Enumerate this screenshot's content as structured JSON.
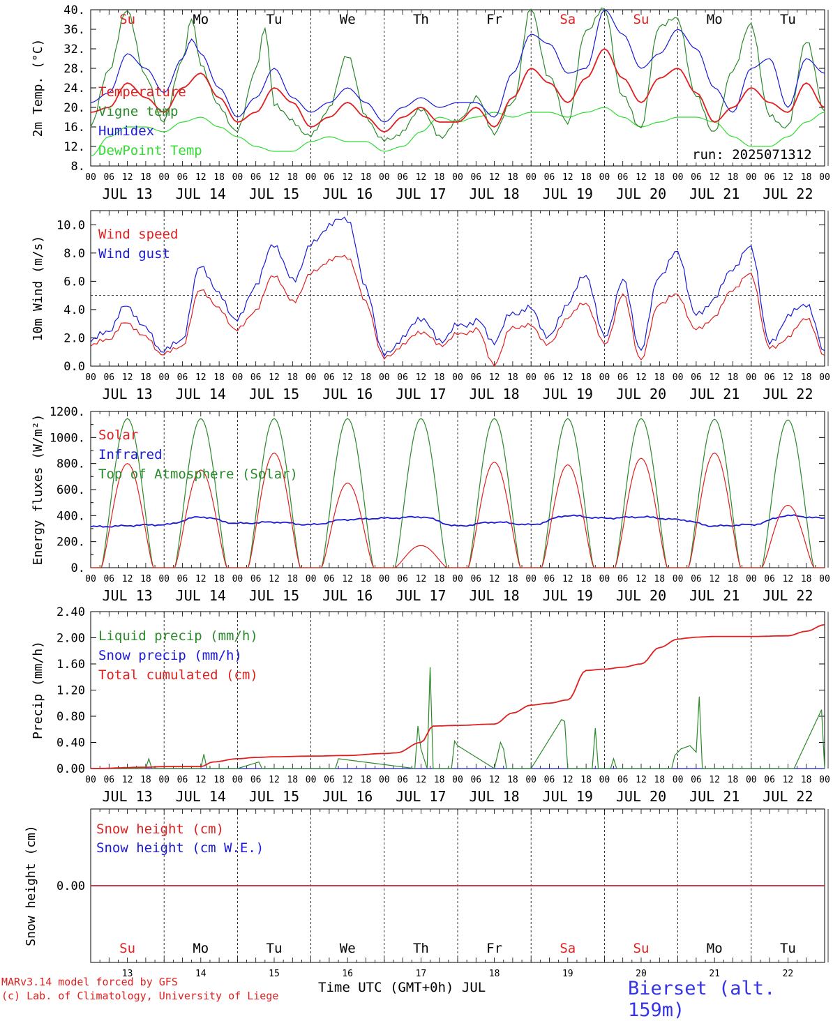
{
  "days": [
    "Su",
    "Mo",
    "Tu",
    "We",
    "Th",
    "Fr",
    "Sa",
    "Su",
    "Mo",
    "Tu"
  ],
  "day_colors": [
    "#e02020",
    "#000000",
    "#000000",
    "#000000",
    "#000000",
    "#000000",
    "#e02020",
    "#e02020",
    "#000000",
    "#000000"
  ],
  "date_labels": [
    "JUL 13",
    "JUL 14",
    "JUL 15",
    "JUL 16",
    "JUL 17",
    "JUL 18",
    "JUL 19",
    "JUL 20",
    "JUL 21",
    "JUL 22"
  ],
  "hour_ticks": [
    "00",
    "06",
    "12",
    "18"
  ],
  "bottom_day_numbers": [
    "13",
    "14",
    "15",
    "16",
    "17",
    "18",
    "19",
    "20",
    "21",
    "22"
  ],
  "run_label": "run: 2025071312",
  "xlabel": "Time UTC (GMT+0h) JUL",
  "credit_line1": "MARv3.14 model forced by GFS",
  "credit_line2": "(c) Lab. of Climatology, University of Liege",
  "station": "Bierset (alt. 159m)",
  "colors": {
    "red": "#e02020",
    "green": "#2a8a2a",
    "lightgreen": "#33dd33",
    "blue": "#1a1ad6"
  },
  "chart_data": [
    {
      "type": "line",
      "ylabel": "2m Temp. (°C)",
      "ylim": [
        8,
        40
      ],
      "yticks": [
        "8.",
        "12.",
        "16.",
        "20.",
        "24.",
        "28.",
        "32.",
        "36.",
        "40."
      ],
      "x_unit": "hours since JUL 13 00 UTC",
      "series": [
        {
          "name": "Temperature",
          "x": [
            0,
            6,
            12,
            18,
            24,
            30,
            36,
            42,
            48,
            54,
            60,
            66,
            72,
            78,
            84,
            90,
            96,
            102,
            108,
            114,
            120,
            126,
            132,
            138,
            144,
            150,
            156,
            162,
            168,
            174,
            180,
            186,
            192,
            198,
            204,
            210,
            216,
            222,
            228,
            234,
            240
          ],
          "values": [
            19,
            20,
            25,
            22,
            19,
            24,
            27,
            22,
            17,
            19,
            24,
            21,
            16,
            18,
            21,
            18,
            15,
            18,
            20,
            17,
            17,
            20,
            16,
            22,
            28,
            25,
            21,
            26,
            32,
            26,
            21,
            26,
            28,
            23,
            17,
            20,
            24,
            21,
            19,
            25,
            20
          ]
        },
        {
          "name": "Vigne temp",
          "x": [
            0,
            6,
            12,
            18,
            24,
            30,
            33,
            36,
            42,
            48,
            54,
            57,
            60,
            66,
            72,
            78,
            84,
            90,
            96,
            102,
            108,
            114,
            120,
            126,
            132,
            138,
            144,
            150,
            156,
            162,
            168,
            174,
            180,
            186,
            192,
            198,
            204,
            210,
            216,
            222,
            228,
            234,
            240
          ],
          "values": [
            16,
            28,
            40,
            26,
            17,
            30,
            38,
            29,
            20,
            15,
            28,
            36,
            21,
            17,
            14,
            20,
            31,
            18,
            13,
            15,
            20,
            14,
            17,
            22,
            15,
            21,
            40,
            26,
            17,
            36,
            40,
            22,
            16,
            37,
            38,
            22,
            15,
            28,
            37,
            18,
            16,
            34,
            19
          ]
        },
        {
          "name": "Humidex",
          "x": [
            0,
            6,
            12,
            18,
            24,
            30,
            33,
            36,
            42,
            48,
            54,
            60,
            66,
            72,
            78,
            84,
            90,
            96,
            102,
            108,
            114,
            120,
            126,
            132,
            138,
            144,
            150,
            156,
            162,
            168,
            174,
            180,
            186,
            192,
            198,
            204,
            210,
            216,
            222,
            228,
            234,
            240
          ],
          "values": [
            21,
            23,
            31,
            28,
            23,
            30,
            34,
            31,
            24,
            18,
            22,
            28,
            22,
            19,
            21,
            24,
            21,
            17,
            20,
            22,
            20,
            21,
            21,
            18,
            27,
            35,
            33,
            27,
            28,
            40,
            35,
            28,
            31,
            36,
            32,
            24,
            19,
            28,
            30,
            20,
            30,
            27
          ]
        },
        {
          "name": "DewPoint Temp",
          "x": [
            0,
            6,
            12,
            18,
            24,
            30,
            36,
            42,
            48,
            54,
            60,
            66,
            72,
            78,
            84,
            90,
            96,
            102,
            108,
            114,
            120,
            126,
            132,
            138,
            144,
            150,
            156,
            162,
            168,
            174,
            180,
            186,
            192,
            198,
            204,
            210,
            216,
            222,
            228,
            234,
            240
          ],
          "values": [
            10,
            14,
            16,
            16,
            15,
            17,
            18,
            16,
            14,
            12,
            11,
            11,
            13,
            14,
            13,
            13,
            11,
            12,
            15,
            18,
            17,
            18,
            19,
            18,
            19,
            19,
            18,
            19,
            20,
            18,
            16,
            17,
            18,
            18,
            17,
            14,
            12,
            12,
            14,
            17,
            19
          ]
        }
      ]
    },
    {
      "type": "line",
      "ylabel": "10m Wind (m/s)",
      "ylim": [
        0,
        11
      ],
      "yticks": [
        "0.0",
        "2.0",
        "4.0",
        "6.0",
        "8.0",
        "10.0"
      ],
      "reference_line": 5.0,
      "x_unit": "hours since JUL 13 00 UTC",
      "series": [
        {
          "name": "Wind speed",
          "x": [
            0,
            6,
            12,
            18,
            24,
            30,
            36,
            42,
            48,
            54,
            60,
            66,
            72,
            78,
            84,
            90,
            96,
            102,
            108,
            114,
            120,
            126,
            132,
            138,
            144,
            150,
            156,
            162,
            168,
            174,
            180,
            186,
            192,
            198,
            204,
            210,
            216,
            222,
            228,
            234,
            240
          ],
          "values": [
            1.4,
            2.0,
            3.1,
            2.0,
            0.8,
            1.5,
            5.5,
            4.0,
            2.5,
            4.0,
            6.5,
            4.5,
            6.5,
            7.5,
            7.8,
            4.5,
            0.5,
            1.5,
            2.5,
            1.5,
            2.2,
            2.6,
            0.2,
            2.8,
            2.8,
            1.5,
            3.5,
            4.5,
            1.5,
            5.0,
            0.5,
            4.5,
            5.0,
            2.5,
            3.5,
            5.5,
            6.5,
            1.2,
            2.0,
            3.5,
            0.7
          ]
        },
        {
          "name": "Wind gust",
          "x": [
            0,
            6,
            12,
            18,
            24,
            30,
            36,
            42,
            48,
            54,
            60,
            66,
            72,
            78,
            84,
            90,
            96,
            102,
            108,
            114,
            120,
            126,
            132,
            138,
            144,
            150,
            156,
            162,
            168,
            174,
            180,
            186,
            192,
            198,
            204,
            210,
            216,
            222,
            228,
            234,
            240
          ],
          "values": [
            1.7,
            2.6,
            4.3,
            2.6,
            1.0,
            2.0,
            7.2,
            5.0,
            3.2,
            5.8,
            8.7,
            6.0,
            8.5,
            10.0,
            10.5,
            5.5,
            0.7,
            2.0,
            3.5,
            1.8,
            2.8,
            3.2,
            1.8,
            3.8,
            4.0,
            2.0,
            4.5,
            6.5,
            2.0,
            6.0,
            1.2,
            6.5,
            8.0,
            3.5,
            4.8,
            7.0,
            8.4,
            1.5,
            3.5,
            4.5,
            1.0
          ]
        }
      ]
    },
    {
      "type": "line",
      "ylabel": "Energy fluxes (W/m²)",
      "ylim": [
        0,
        1200
      ],
      "yticks": [
        "0.",
        "200.",
        "400.",
        "600.",
        "800.",
        "1000.",
        "1200."
      ],
      "x_unit": "hours since JUL 13 00 UTC",
      "series": [
        {
          "name": "Solar",
          "daily_peak": [
            800,
            750,
            880,
            650,
            170,
            810,
            790,
            840,
            880,
            480
          ]
        },
        {
          "name": "Infrared",
          "x": [
            0,
            24,
            36,
            48,
            60,
            72,
            84,
            96,
            108,
            120,
            132,
            144,
            156,
            168,
            180,
            192,
            204,
            216,
            228,
            240
          ],
          "values": [
            315,
            330,
            390,
            340,
            350,
            330,
            370,
            380,
            390,
            320,
            350,
            330,
            400,
            380,
            390,
            370,
            320,
            330,
            400,
            380
          ]
        },
        {
          "name": "Top of Atmosphere (Solar)",
          "daily_peak": [
            1145,
            1145,
            1145,
            1145,
            1145,
            1145,
            1145,
            1145,
            1140,
            1135
          ]
        }
      ]
    },
    {
      "type": "line",
      "ylabel": "Precip (mm/h)",
      "ylim": [
        0,
        2.4
      ],
      "yticks": [
        "0.00",
        "0.40",
        "0.80",
        "1.20",
        "1.60",
        "2.00",
        "2.40"
      ],
      "x_unit": "hours since JUL 13 00 UTC",
      "series": [
        {
          "name": "Liquid precip (mm/h)",
          "x": [
            0,
            18,
            19,
            20,
            36,
            37,
            38,
            48,
            55,
            56,
            80,
            81,
            106,
            107,
            108,
            110,
            111,
            112,
            118,
            119,
            120,
            132,
            134,
            135,
            136,
            144,
            154,
            155,
            156,
            164,
            165,
            166,
            170,
            171,
            172,
            190,
            191,
            193,
            196,
            198,
            199,
            200,
            204,
            212,
            220,
            230,
            232,
            239,
            240
          ],
          "values": [
            0,
            0,
            0.15,
            0,
            0,
            0.22,
            0,
            0,
            0.1,
            0,
            0,
            0.15,
            0,
            0.65,
            0.3,
            0,
            1.55,
            0,
            0,
            0.42,
            0.35,
            0,
            0.4,
            0.3,
            0,
            0,
            0.75,
            0.72,
            0,
            0,
            0.62,
            0,
            0,
            0.15,
            0,
            0,
            0.2,
            0.3,
            0.35,
            0.25,
            1.1,
            0,
            0,
            0,
            0,
            0,
            0.2,
            0.9,
            0
          ]
        },
        {
          "name": "Snow precip (mm/h)",
          "x": [
            0,
            240
          ],
          "values": [
            0,
            0
          ]
        },
        {
          "name": "Total cumulated (cm)",
          "x": [
            0,
            18,
            24,
            36,
            40,
            48,
            54,
            60,
            72,
            84,
            96,
            100,
            108,
            112,
            120,
            132,
            138,
            144,
            150,
            156,
            162,
            168,
            174,
            180,
            186,
            192,
            196,
            198,
            204,
            216,
            228,
            234,
            240
          ],
          "values": [
            0,
            0.02,
            0.03,
            0.03,
            0.1,
            0.15,
            0.17,
            0.18,
            0.19,
            0.2,
            0.23,
            0.24,
            0.4,
            0.65,
            0.66,
            0.68,
            0.85,
            0.97,
            1.0,
            1.05,
            1.5,
            1.52,
            1.55,
            1.6,
            1.85,
            1.98,
            2.0,
            2.01,
            2.02,
            2.02,
            2.03,
            2.1,
            2.2
          ]
        }
      ]
    },
    {
      "type": "line",
      "ylabel": "Snow height (cm)",
      "yticks": [
        "0.00"
      ],
      "series": [
        {
          "name": "Snow height (cm)",
          "x": [
            0,
            240
          ],
          "values": [
            0,
            0
          ]
        },
        {
          "name": "Snow height (cm W.E.)",
          "x": [
            0,
            240
          ],
          "values": [
            0,
            0
          ]
        }
      ]
    }
  ]
}
